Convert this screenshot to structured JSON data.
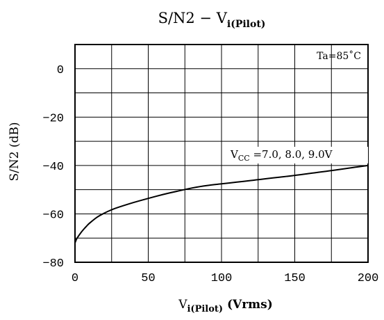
{
  "chart_data": {
    "type": "line",
    "title": {
      "main": "S/N2  −  V",
      "sub": "i(Pilot)"
    },
    "xlabel": {
      "main": "V",
      "sub": "i(Pilot)",
      "rest": " (Vrms)"
    },
    "ylabel": "S/N2  (dB)",
    "xlim": [
      0,
      200
    ],
    "ylim": [
      -80,
      10
    ],
    "x_ticks": [
      0,
      50,
      100,
      150,
      200
    ],
    "y_ticks": [
      0,
      -20,
      -40,
      -60,
      -80
    ],
    "x_gridlines": [
      0,
      25,
      50,
      75,
      100,
      125,
      150,
      175,
      200
    ],
    "y_gridlines": [
      10,
      0,
      -10,
      -20,
      -30,
      -40,
      -50,
      -60,
      -70,
      -80
    ],
    "grid": true,
    "annotations": {
      "ta": "Ta=85˚C",
      "vcc_main": "V",
      "vcc_sub": "CC",
      "vcc_rest": " =7.0,  8.0,  9.0V"
    },
    "series": [
      {
        "color": "#000000",
        "x": [
          0,
          1,
          2,
          4,
          6,
          8,
          10,
          15,
          20,
          25,
          30,
          40,
          50,
          60,
          70,
          80,
          90,
          100,
          110,
          120,
          130,
          140,
          150,
          160,
          170,
          180,
          190,
          200
        ],
        "y": [
          -72,
          -70.5,
          -69.5,
          -67.8,
          -66.3,
          -65,
          -63.8,
          -61.4,
          -59.7,
          -58.3,
          -57.2,
          -55.3,
          -53.6,
          -52,
          -50.6,
          -49.3,
          -48.3,
          -47.6,
          -46.9,
          -46.2,
          -45.5,
          -44.8,
          -44.1,
          -43.3,
          -42.5,
          -41.7,
          -40.8,
          -40
        ]
      }
    ]
  }
}
